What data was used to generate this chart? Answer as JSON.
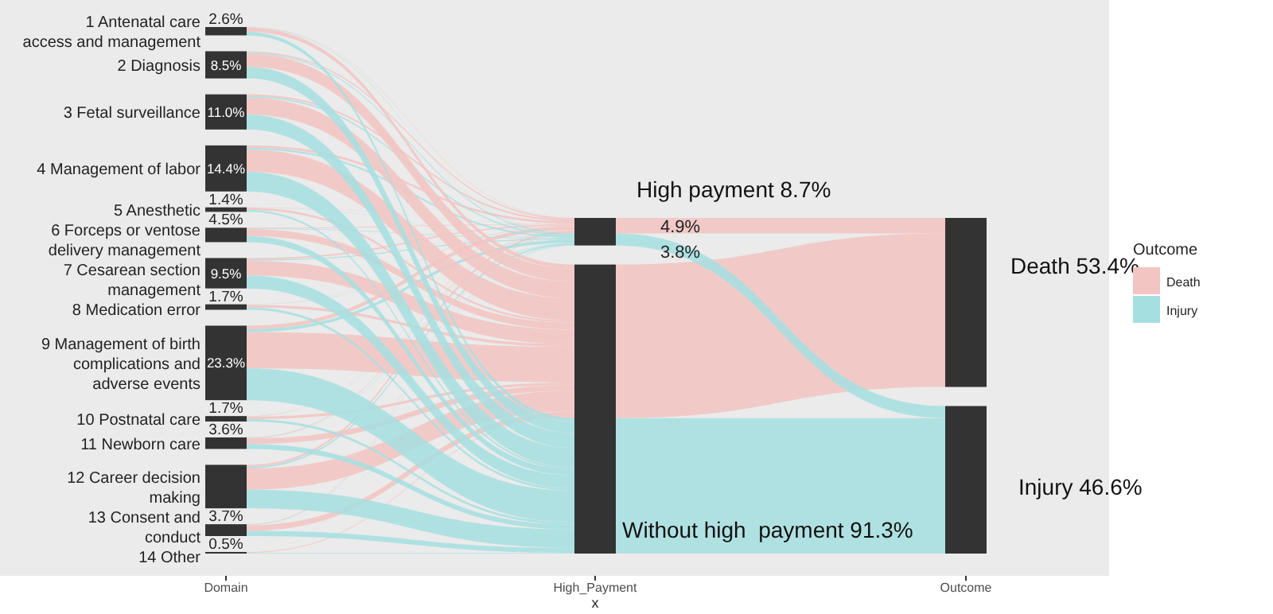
{
  "chart_data": {
    "type": "other",
    "xlabel": "x",
    "legend_title": "Outcome",
    "legend": "right",
    "color": "#333333",
    "categories": [
      "1 Antenatal care access and management",
      "2 Diagnosis",
      "3 Fetal surveillance",
      "4 Management of labor",
      "5 Anesthetic",
      "6 Forceps or ventose delivery management",
      "7 Cesarean section management",
      "8 Medication error",
      "9 Management of birth complications and adverse events",
      "10 Postnatal care",
      "11 Newborn care",
      "12 Career decision making",
      "13 Consent and conduct",
      "14 Other"
    ],
    "values": [
      2.6,
      8.5,
      11.0,
      14.4,
      1.4,
      4.5,
      9.5,
      1.7,
      23.3,
      1.7,
      3.6,
      null,
      3.7,
      0.5
    ],
    "value_labels": [
      "2.6%",
      "8.5%",
      "11.0%",
      "14.4%",
      "1.4%",
      "4.5%",
      "9.5%",
      "1.7%",
      "23.3%",
      "1.7%",
      "3.6%",
      null,
      "3.7%",
      "0.5%"
    ],
    "series": [
      {
        "name": "Death",
        "color": "#f2c4c2",
        "values": [
          null,
          null,
          null,
          null,
          null,
          null,
          null,
          null,
          null,
          null,
          null,
          null,
          null,
          null
        ]
      },
      {
        "name": "Injury",
        "color": "#a6dfe0",
        "values": [
          null,
          null,
          null,
          null,
          null,
          null,
          null,
          null,
          null,
          null,
          null,
          null,
          null,
          null
        ]
      }
    ],
    "annotations": [
      "High payment 8.7%",
      "4.9%",
      "3.8%",
      "Without high  payment 91.3%",
      "Death 53.4%",
      "Injury 46.6%",
      "Domain",
      "High_Payment",
      "Outcome"
    ]
  }
}
